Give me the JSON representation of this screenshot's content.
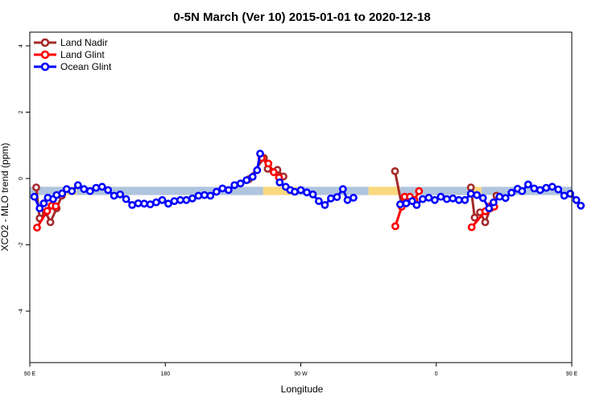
{
  "chart_data": {
    "type": "line",
    "title": "0-5N March (Ver 10)   2015-01-01 to 2020-12-18",
    "xlabel": "Longitude",
    "ylabel": "XCO2 - MLO trend (ppm)",
    "xlim": [
      0,
      360
    ],
    "ylim": [
      -4.5,
      4.5
    ],
    "xticks": [
      {
        "value": 0,
        "label": "90 E"
      },
      {
        "value": 90,
        "label": "180"
      },
      {
        "value": 180,
        "label": "90 W"
      },
      {
        "value": 270,
        "label": "0"
      },
      {
        "value": 360,
        "label": "90 E"
      },
      {
        "value": 450,
        "label": "180"
      }
    ],
    "yticks": [
      {
        "value": 4,
        "label": "4"
      },
      {
        "value": 2,
        "label": "2"
      },
      {
        "value": 0,
        "label": "0"
      },
      {
        "value": -2,
        "label": "-2"
      },
      {
        "value": -4,
        "label": "-4"
      }
    ],
    "grid": false,
    "legend_position": "top-left",
    "background_band": {
      "y_range": [
        -0.5,
        -0.25
      ],
      "segments": [
        {
          "x_range": [
            0,
            22
          ],
          "color": "#b0c4de"
        },
        {
          "x_range": [
            22,
            31
          ],
          "color": "#fad87d"
        },
        {
          "x_range": [
            31,
            155
          ],
          "color": "#b0c4de"
        },
        {
          "x_range": [
            155,
            178
          ],
          "color": "#fad87d"
        },
        {
          "x_range": [
            178,
            225
          ],
          "color": "#b0c4de"
        },
        {
          "x_range": [
            225,
            246
          ],
          "color": "#fad87d"
        },
        {
          "x_range": [
            246,
            291
          ],
          "color": "#b0c4de"
        },
        {
          "x_range": [
            291,
            300
          ],
          "color": "#fad87d"
        },
        {
          "x_range": [
            300,
            360
          ],
          "color": "#b0c4de"
        }
      ]
    },
    "series": [
      {
        "name": "Land Nadir",
        "color": "#a52a2a",
        "segments": [
          [
            [
              4.3,
              -0.27
            ],
            [
              6.5,
              -1.2
            ],
            [
              10.6,
              -1.02
            ],
            [
              13.7,
              -1.32
            ],
            [
              17.8,
              -0.9
            ],
            [
              21.3,
              -0.52
            ]
          ],
          [
            [
              145.6,
              -0.02
            ],
            [
              155.5,
              0.62
            ],
            [
              158.0,
              0.29
            ],
            [
              164.5,
              0.26
            ],
            [
              168.5,
              0.06
            ]
          ],
          [
            [
              242.6,
              0.22
            ],
            [
              247.0,
              -0.8
            ],
            [
              249.5,
              -0.7
            ]
          ],
          [
            [
              293.0,
              -0.27
            ],
            [
              295.5,
              -1.18
            ],
            [
              299.0,
              -1.02
            ],
            [
              302.5,
              -1.32
            ],
            [
              306.0,
              -0.9
            ],
            [
              310.0,
              -0.52
            ]
          ]
        ]
      },
      {
        "name": "Land Glint",
        "color": "#ff0000",
        "segments": [
          [
            [
              4.8,
              -1.48
            ],
            [
              11.5,
              -0.98
            ],
            [
              14.5,
              -0.82
            ],
            [
              17.3,
              -0.84
            ]
          ],
          [
            [
              154.0,
              0.62
            ],
            [
              158.5,
              0.45
            ],
            [
              162.0,
              0.19
            ],
            [
              165.5,
              0.03
            ]
          ],
          [
            [
              242.8,
              -1.44
            ],
            [
              247.0,
              -0.85
            ],
            [
              249.0,
              -0.55
            ],
            [
              252.5,
              -0.55
            ],
            [
              255.5,
              -0.65
            ],
            [
              258.5,
              -0.38
            ]
          ],
          [
            [
              293.5,
              -1.47
            ],
            [
              302.5,
              -0.99
            ],
            [
              305.5,
              -0.84
            ],
            [
              308.5,
              -0.85
            ]
          ]
        ]
      },
      {
        "name": "Ocean Glint",
        "color": "#0000ff",
        "segments": [
          [
            [
              3,
              -0.55
            ],
            [
              6.5,
              -0.9
            ],
            [
              9.3,
              -0.75
            ],
            [
              12,
              -0.58
            ],
            [
              15.5,
              -0.62
            ],
            [
              17.8,
              -0.5
            ],
            [
              21.5,
              -0.45
            ],
            [
              24.5,
              -0.32
            ],
            [
              28,
              -0.38
            ],
            [
              32,
              -0.2
            ],
            [
              36,
              -0.32
            ],
            [
              40,
              -0.38
            ],
            [
              44,
              -0.28
            ],
            [
              48,
              -0.25
            ],
            [
              52,
              -0.35
            ],
            [
              56,
              -0.52
            ],
            [
              60,
              -0.48
            ],
            [
              64,
              -0.62
            ],
            [
              68,
              -0.8
            ],
            [
              72,
              -0.75
            ],
            [
              76,
              -0.76
            ],
            [
              80,
              -0.78
            ],
            [
              84,
              -0.72
            ],
            [
              88,
              -0.65
            ],
            [
              92,
              -0.76
            ],
            [
              96,
              -0.68
            ],
            [
              100,
              -0.65
            ],
            [
              104,
              -0.65
            ],
            [
              108,
              -0.6
            ],
            [
              112,
              -0.52
            ],
            [
              116,
              -0.5
            ],
            [
              120,
              -0.52
            ],
            [
              124,
              -0.4
            ],
            [
              128,
              -0.3
            ],
            [
              132,
              -0.35
            ],
            [
              136,
              -0.2
            ],
            [
              140,
              -0.15
            ],
            [
              144,
              -0.05
            ],
            [
              148,
              0.05
            ],
            [
              151,
              0.25
            ],
            [
              153,
              0.75
            ]
          ]
        ]
      },
      {
        "name": "Ocean Glint",
        "color": "#0000ff",
        "segments": [
          [
            [
              166,
              -0.12
            ],
            [
              170,
              -0.25
            ],
            [
              173,
              -0.35
            ],
            [
              176,
              -0.4
            ],
            [
              180,
              -0.35
            ],
            [
              184,
              -0.42
            ],
            [
              188,
              -0.48
            ],
            [
              192,
              -0.68
            ],
            [
              196,
              -0.8
            ],
            [
              200,
              -0.6
            ],
            [
              204,
              -0.56
            ],
            [
              208,
              -0.32
            ],
            [
              211,
              -0.65
            ],
            [
              215,
              -0.58
            ]
          ],
          [
            [
              246,
              -0.78
            ],
            [
              250,
              -0.75
            ],
            [
              254,
              -0.68
            ],
            [
              257,
              -0.8
            ],
            [
              261,
              -0.62
            ],
            [
              265,
              -0.58
            ],
            [
              269,
              -0.65
            ],
            [
              273,
              -0.55
            ],
            [
              277,
              -0.62
            ],
            [
              281,
              -0.6
            ],
            [
              285,
              -0.65
            ],
            [
              289,
              -0.65
            ],
            [
              293,
              -0.46
            ],
            [
              297,
              -0.5
            ],
            [
              301,
              -0.59
            ],
            [
              305,
              -0.9
            ],
            [
              308,
              -0.72
            ],
            [
              312,
              -0.55
            ],
            [
              316,
              -0.59
            ],
            [
              320,
              -0.43
            ],
            [
              324,
              -0.31
            ],
            [
              327,
              -0.38
            ],
            [
              331,
              -0.18
            ],
            [
              335,
              -0.3
            ],
            [
              339,
              -0.35
            ],
            [
              343,
              -0.28
            ],
            [
              347,
              -0.25
            ],
            [
              351,
              -0.33
            ],
            [
              355,
              -0.52
            ],
            [
              359,
              -0.46
            ],
            [
              363,
              -0.65
            ],
            [
              366,
              -0.82
            ]
          ]
        ]
      }
    ]
  }
}
